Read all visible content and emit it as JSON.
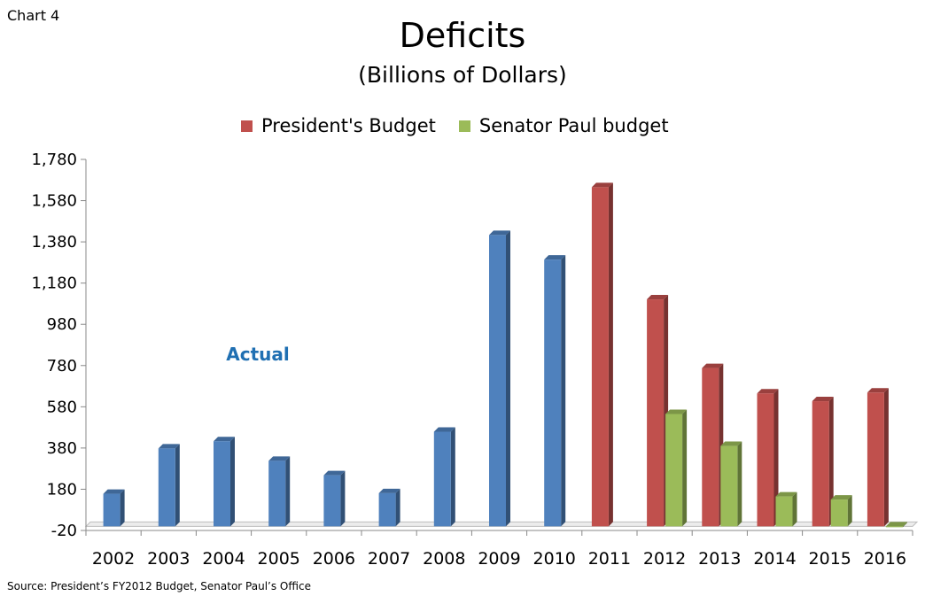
{
  "chart_label": "Chart 4",
  "source": "Source:  President’s FY2012 Budget, Senator Paul’s Office",
  "chart_data": {
    "type": "bar",
    "title": "Deficits",
    "subtitle": "(Billions of Dollars)",
    "categories": [
      "2002",
      "2003",
      "2004",
      "2005",
      "2006",
      "2007",
      "2008",
      "2009",
      "2010",
      "2011",
      "2012",
      "2013",
      "2014",
      "2015",
      "2016"
    ],
    "ylim": [
      -20,
      1780
    ],
    "yticks": [
      -20,
      180,
      380,
      580,
      780,
      980,
      1180,
      1380,
      1580,
      1780
    ],
    "ytick_labels": [
      "-20",
      "180",
      "380",
      "580",
      "780",
      "980",
      "1,180",
      "1,380",
      "1,580",
      "1,780"
    ],
    "actual": [
      158,
      378,
      413,
      318,
      248,
      161,
      459,
      1413,
      1294,
      null,
      null,
      null,
      null,
      null,
      null
    ],
    "series": [
      {
        "name": "President's Budget",
        "color": "#c0504d",
        "values": [
          null,
          null,
          null,
          null,
          null,
          null,
          null,
          null,
          null,
          1645,
          1101,
          768,
          645,
          607,
          649
        ]
      },
      {
        "name": "Senator Paul budget",
        "color": "#9bbb59",
        "values": [
          null,
          null,
          null,
          null,
          null,
          null,
          null,
          null,
          null,
          null,
          545,
          390,
          145,
          130,
          -3
        ]
      }
    ],
    "actual_color": "#4f81bd",
    "annotation": "Actual",
    "legend_position": "top",
    "grid": false
  }
}
